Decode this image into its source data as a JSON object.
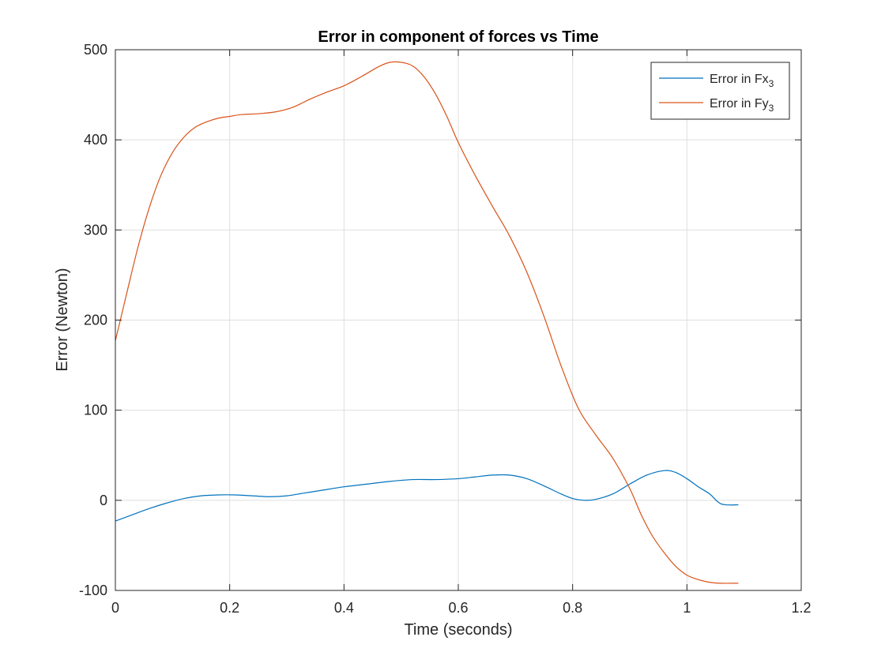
{
  "chart_data": {
    "type": "line",
    "title": "Error in component of forces vs Time",
    "xlabel": "Time (seconds)",
    "ylabel": "Error (Newton)",
    "xlim": [
      0,
      1.2
    ],
    "ylim": [
      -100,
      500
    ],
    "xticks": [
      0,
      0.2,
      0.4,
      0.6,
      0.8,
      1,
      1.2
    ],
    "xtick_labels": [
      "0",
      "0.2",
      "0.4",
      "0.6",
      "0.8",
      "1",
      "1.2"
    ],
    "yticks": [
      -100,
      0,
      100,
      200,
      300,
      400,
      500
    ],
    "ytick_labels": [
      "-100",
      "0",
      "100",
      "200",
      "300",
      "400",
      "500"
    ],
    "grid": true,
    "legend_position": "top-right",
    "series": [
      {
        "name": "Error in Fx",
        "name_subscript": "3",
        "color": "#0072BD",
        "x": [
          0,
          0.03,
          0.06,
          0.09,
          0.12,
          0.15,
          0.18,
          0.21,
          0.24,
          0.27,
          0.3,
          0.33,
          0.36,
          0.4,
          0.44,
          0.48,
          0.52,
          0.56,
          0.6,
          0.63,
          0.66,
          0.69,
          0.72,
          0.75,
          0.78,
          0.8,
          0.82,
          0.84,
          0.87,
          0.9,
          0.93,
          0.96,
          0.98,
          1.0,
          1.02,
          1.04,
          1.06,
          1.09
        ],
        "y": [
          -23,
          -16,
          -9,
          -3,
          2,
          5,
          6,
          6,
          5,
          4,
          5,
          8,
          11,
          15,
          18,
          21,
          23,
          23,
          24,
          26,
          28,
          28,
          24,
          16,
          7,
          2,
          0,
          1,
          7,
          18,
          28,
          33,
          31,
          24,
          15,
          7,
          -4,
          -5
        ]
      },
      {
        "name": "Error in Fy",
        "name_subscript": "3",
        "color": "#D95319",
        "x": [
          0,
          0.02,
          0.04,
          0.06,
          0.08,
          0.1,
          0.12,
          0.14,
          0.16,
          0.18,
          0.2,
          0.22,
          0.25,
          0.28,
          0.31,
          0.34,
          0.37,
          0.4,
          0.43,
          0.46,
          0.48,
          0.5,
          0.52,
          0.54,
          0.56,
          0.58,
          0.6,
          0.63,
          0.66,
          0.69,
          0.72,
          0.75,
          0.78,
          0.81,
          0.84,
          0.87,
          0.9,
          0.92,
          0.94,
          0.96,
          0.98,
          1.0,
          1.02,
          1.04,
          1.06,
          1.09
        ],
        "y": [
          177,
          230,
          282,
          326,
          361,
          386,
          403,
          414,
          420,
          424,
          426,
          428,
          429,
          431,
          436,
          445,
          453,
          460,
          470,
          481,
          486,
          486,
          482,
          470,
          451,
          426,
          397,
          360,
          326,
          293,
          253,
          204,
          149,
          102,
          73,
          47,
          13,
          -16,
          -40,
          -58,
          -73,
          -83,
          -88,
          -91,
          -92,
          -92
        ]
      }
    ]
  }
}
